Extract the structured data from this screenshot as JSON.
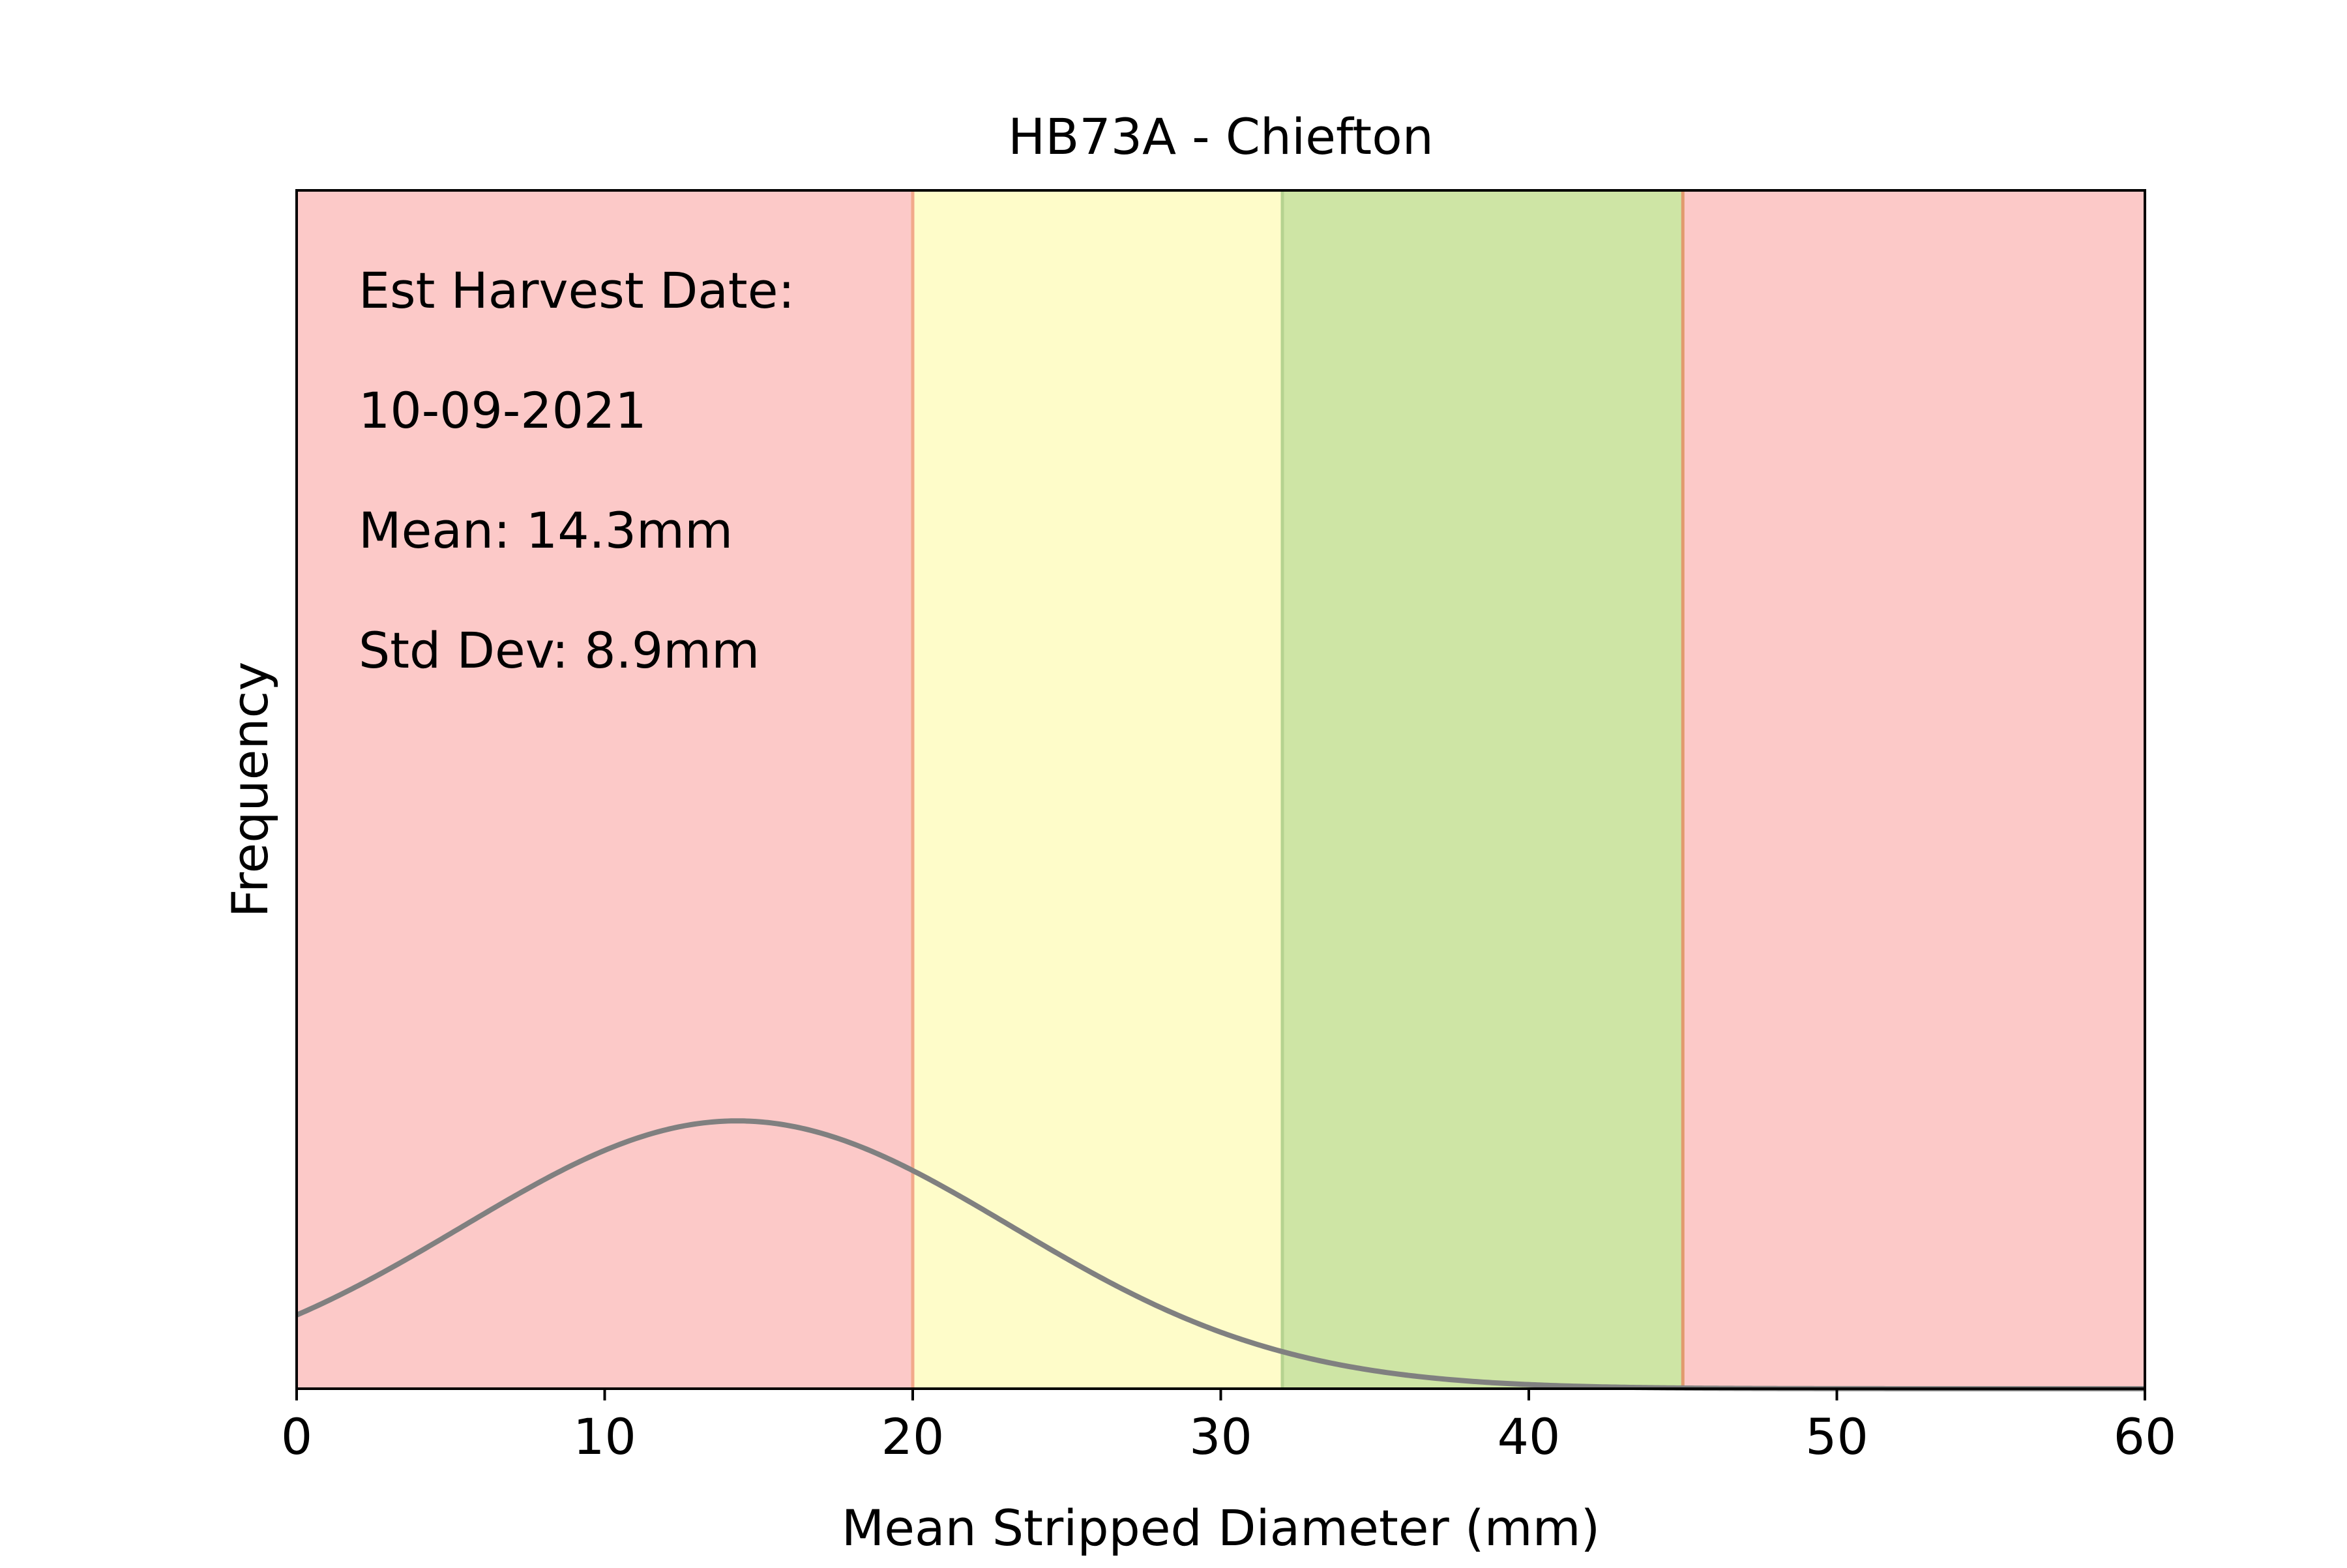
{
  "chart_data": {
    "type": "area",
    "title": "HB73A - Chiefton",
    "xlabel": "Mean Stripped Diameter (mm)",
    "ylabel": "Frequency",
    "xlim": [
      0,
      60
    ],
    "xticks": [
      "0",
      "10",
      "20",
      "30",
      "40",
      "50",
      "60"
    ],
    "y_ticks_shown": false,
    "grid": false,
    "bands": [
      {
        "from": 0,
        "to": 20,
        "color": "#fcc9c8",
        "edge": "#f2a98a"
      },
      {
        "from": 20,
        "to": 32,
        "color": "#fefcc9",
        "edge": "#b5d390"
      },
      {
        "from": 32,
        "to": 45,
        "color": "#cee5a5",
        "edge": "#e19a6e"
      },
      {
        "from": 45,
        "to": 60,
        "color": "#fcc9c8",
        "edge": null
      }
    ],
    "curve": {
      "kind": "normal-distribution",
      "mean": 14.3,
      "std": 8.9,
      "color": "#808080",
      "x_range": [
        0,
        60
      ]
    },
    "annotations": [
      "Est Harvest Date:",
      "10-09-2021",
      "Mean: 14.3mm",
      "Std Dev: 8.9mm"
    ]
  }
}
